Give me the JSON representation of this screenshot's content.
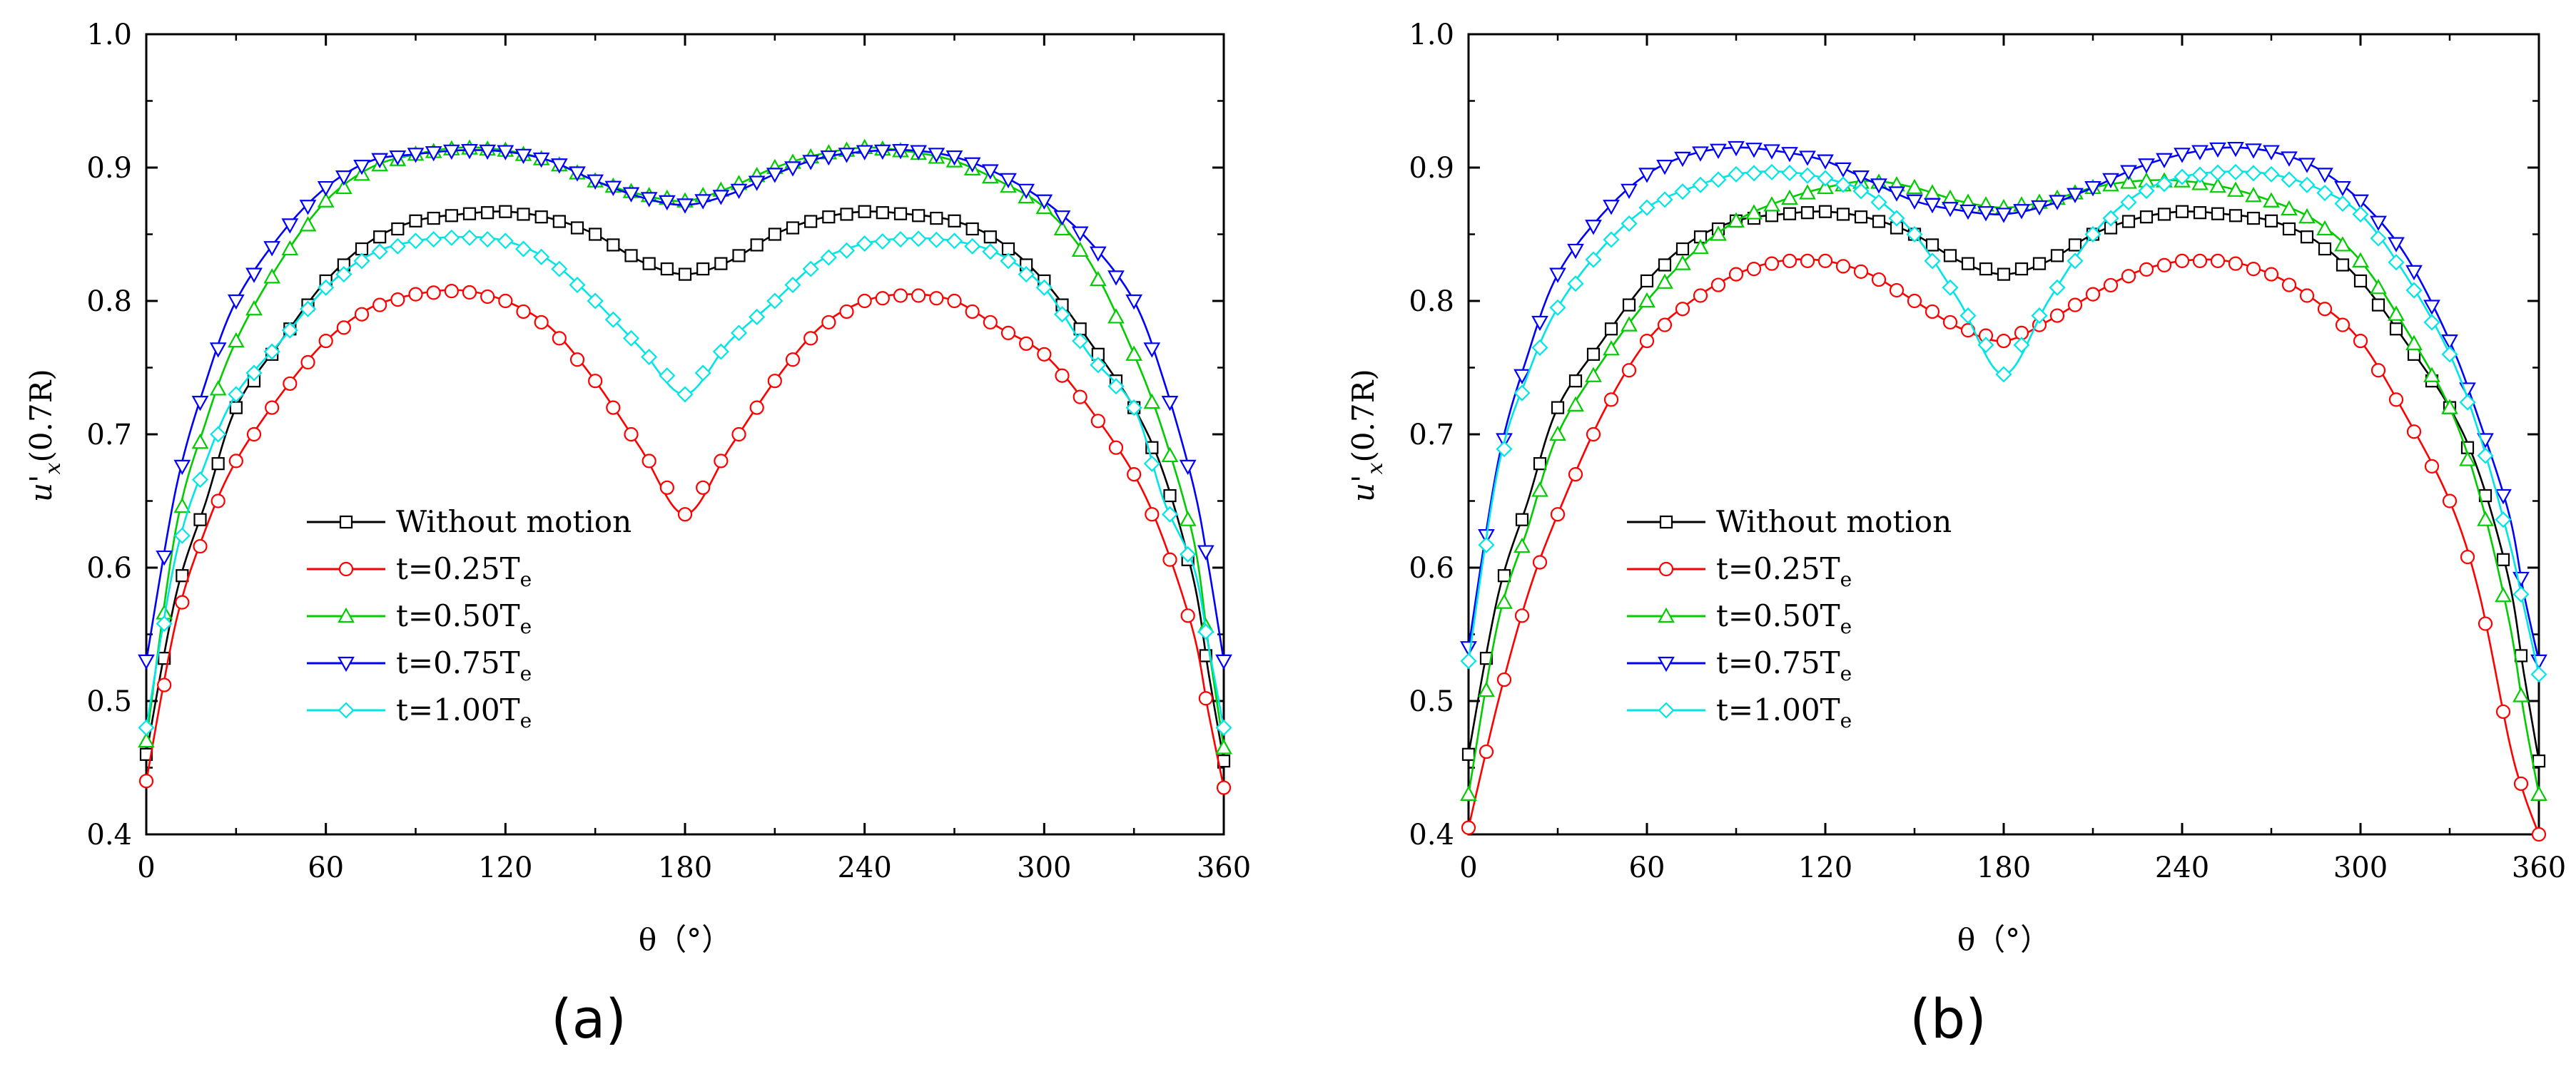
{
  "figure": {
    "panels": [
      {
        "id": "a",
        "label": "(a)",
        "ylabel_main": "u'",
        "ylabel_sub": "x",
        "ylabel_tail": "(0.7R)",
        "xlabel": "θ（°）"
      },
      {
        "id": "b",
        "label": "(b)",
        "ylabel_main": "u'",
        "ylabel_sub": "x",
        "ylabel_tail": "(0.7R)",
        "xlabel": "θ（°）"
      }
    ],
    "legend": [
      {
        "text": "Without motion",
        "sub": "",
        "color": "#000000",
        "marker": "square"
      },
      {
        "text": "t=0.25T",
        "sub": "e",
        "color": "#ff0000",
        "marker": "circle"
      },
      {
        "text": "t=0.50T",
        "sub": "e",
        "color": "#00cc00",
        "marker": "triangle-up"
      },
      {
        "text": "t=0.75T",
        "sub": "e",
        "color": "#0000ff",
        "marker": "triangle-down"
      },
      {
        "text": "t=1.00T",
        "sub": "e",
        "color": "#00e5e5",
        "marker": "diamond"
      }
    ]
  },
  "chart_data": [
    {
      "type": "line",
      "title": "(a)",
      "xlabel": "θ（°）",
      "ylabel": "u'x(0.7R)",
      "xlim": [
        0,
        360
      ],
      "ylim": [
        0.4,
        1.0
      ],
      "xticks": [
        0,
        60,
        120,
        180,
        240,
        300,
        360
      ],
      "yticks": [
        0.4,
        0.5,
        0.6,
        0.7,
        0.8,
        0.9,
        1.0
      ],
      "x": [
        0,
        10,
        20,
        30,
        45,
        60,
        75,
        90,
        105,
        120,
        135,
        150,
        165,
        180,
        195,
        210,
        225,
        240,
        255,
        270,
        285,
        300,
        315,
        330,
        340,
        350,
        355,
        360
      ],
      "series": [
        {
          "name": "Without motion",
          "values": [
            0.46,
            0.58,
            0.65,
            0.72,
            0.77,
            0.815,
            0.845,
            0.86,
            0.865,
            0.867,
            0.862,
            0.85,
            0.83,
            0.82,
            0.83,
            0.85,
            0.862,
            0.867,
            0.865,
            0.86,
            0.845,
            0.815,
            0.77,
            0.72,
            0.67,
            0.59,
            0.52,
            0.455
          ]
        },
        {
          "name": "t=0.25Te",
          "values": [
            0.44,
            0.56,
            0.63,
            0.68,
            0.73,
            0.77,
            0.795,
            0.805,
            0.808,
            0.8,
            0.78,
            0.74,
            0.69,
            0.64,
            0.69,
            0.74,
            0.78,
            0.8,
            0.805,
            0.8,
            0.78,
            0.76,
            0.72,
            0.67,
            0.62,
            0.55,
            0.49,
            0.435
          ]
        },
        {
          "name": "t=0.50Te",
          "values": [
            0.47,
            0.63,
            0.71,
            0.77,
            0.83,
            0.875,
            0.9,
            0.91,
            0.915,
            0.913,
            0.905,
            0.89,
            0.88,
            0.875,
            0.885,
            0.9,
            0.91,
            0.915,
            0.912,
            0.905,
            0.89,
            0.87,
            0.83,
            0.76,
            0.7,
            0.62,
            0.54,
            0.465
          ]
        },
        {
          "name": "t=0.75Te",
          "values": [
            0.53,
            0.66,
            0.74,
            0.8,
            0.85,
            0.885,
            0.905,
            0.91,
            0.913,
            0.912,
            0.905,
            0.89,
            0.878,
            0.872,
            0.88,
            0.895,
            0.907,
            0.912,
            0.913,
            0.908,
            0.895,
            0.875,
            0.845,
            0.8,
            0.74,
            0.66,
            0.6,
            0.53
          ]
        },
        {
          "name": "t=1.00Te",
          "values": [
            0.48,
            0.61,
            0.68,
            0.73,
            0.77,
            0.81,
            0.835,
            0.845,
            0.848,
            0.845,
            0.83,
            0.8,
            0.765,
            0.73,
            0.77,
            0.8,
            0.83,
            0.843,
            0.847,
            0.845,
            0.835,
            0.81,
            0.76,
            0.72,
            0.65,
            0.6,
            0.54,
            0.48
          ]
        }
      ]
    },
    {
      "type": "line",
      "title": "(b)",
      "xlabel": "θ（°）",
      "ylabel": "u'x(0.7R)",
      "xlim": [
        0,
        360
      ],
      "ylim": [
        0.4,
        1.0
      ],
      "xticks": [
        0,
        60,
        120,
        180,
        240,
        300,
        360
      ],
      "yticks": [
        0.4,
        0.5,
        0.6,
        0.7,
        0.8,
        0.9,
        1.0
      ],
      "x": [
        0,
        10,
        20,
        30,
        45,
        60,
        75,
        90,
        105,
        120,
        135,
        150,
        165,
        180,
        195,
        210,
        225,
        240,
        255,
        270,
        285,
        300,
        315,
        330,
        340,
        350,
        355,
        360
      ],
      "series": [
        {
          "name": "Without motion",
          "values": [
            0.46,
            0.58,
            0.65,
            0.72,
            0.77,
            0.815,
            0.845,
            0.86,
            0.865,
            0.867,
            0.862,
            0.85,
            0.83,
            0.82,
            0.83,
            0.85,
            0.862,
            0.867,
            0.865,
            0.86,
            0.845,
            0.815,
            0.77,
            0.72,
            0.67,
            0.59,
            0.52,
            0.455
          ]
        },
        {
          "name": "t=0.25Te",
          "values": [
            0.405,
            0.5,
            0.58,
            0.64,
            0.715,
            0.77,
            0.8,
            0.82,
            0.83,
            0.83,
            0.82,
            0.8,
            0.78,
            0.77,
            0.785,
            0.805,
            0.822,
            0.83,
            0.83,
            0.82,
            0.8,
            0.77,
            0.715,
            0.65,
            0.58,
            0.47,
            0.43,
            0.4
          ]
        },
        {
          "name": "t=0.50Te",
          "values": [
            0.43,
            0.56,
            0.63,
            0.7,
            0.755,
            0.8,
            0.835,
            0.86,
            0.875,
            0.885,
            0.89,
            0.885,
            0.875,
            0.87,
            0.875,
            0.885,
            0.89,
            0.89,
            0.885,
            0.875,
            0.86,
            0.83,
            0.78,
            0.72,
            0.655,
            0.56,
            0.49,
            0.43
          ]
        },
        {
          "name": "t=0.75Te",
          "values": [
            0.54,
            0.68,
            0.76,
            0.82,
            0.865,
            0.895,
            0.91,
            0.915,
            0.912,
            0.905,
            0.89,
            0.875,
            0.868,
            0.865,
            0.872,
            0.885,
            0.9,
            0.91,
            0.915,
            0.912,
            0.9,
            0.875,
            0.835,
            0.77,
            0.71,
            0.64,
            0.58,
            0.53
          ]
        },
        {
          "name": "t=1.00Te",
          "values": [
            0.53,
            0.675,
            0.745,
            0.795,
            0.84,
            0.87,
            0.885,
            0.895,
            0.897,
            0.892,
            0.88,
            0.85,
            0.8,
            0.745,
            0.8,
            0.85,
            0.88,
            0.893,
            0.897,
            0.895,
            0.885,
            0.865,
            0.82,
            0.76,
            0.7,
            0.62,
            0.57,
            0.52
          ]
        }
      ]
    }
  ]
}
